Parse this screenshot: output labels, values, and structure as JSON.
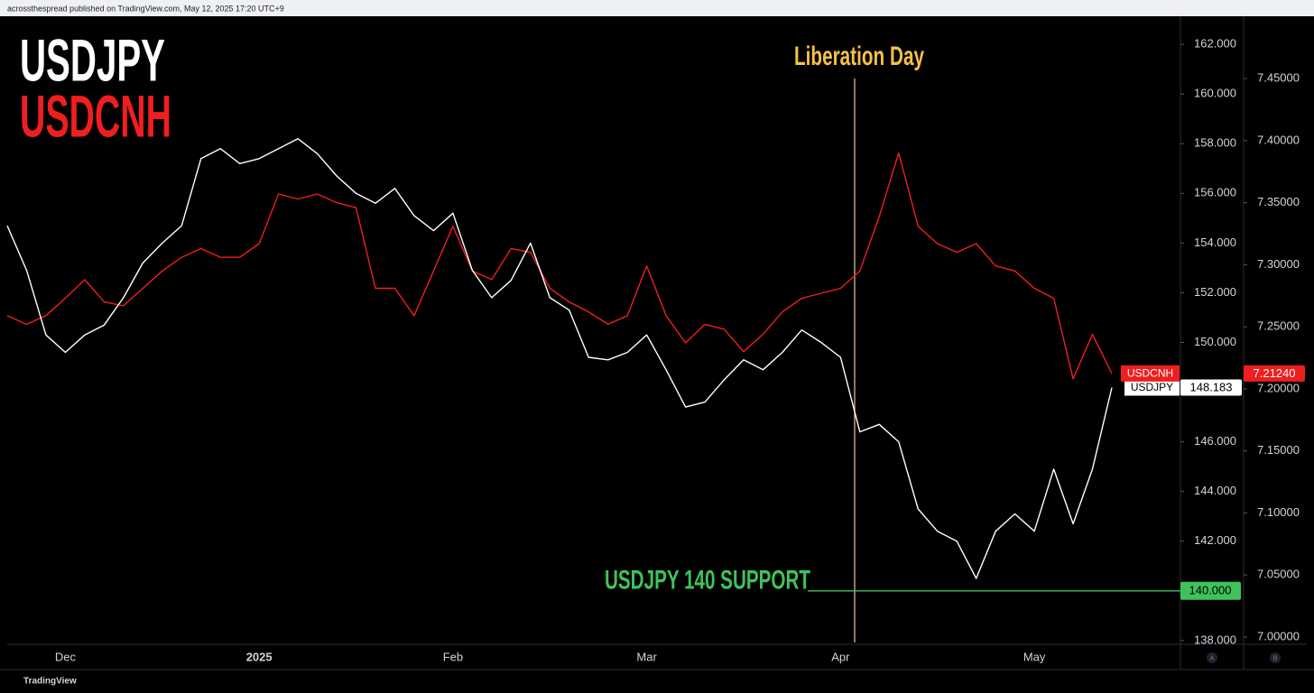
{
  "header": "acrossthespread published on TradingView.com, May 12, 2025 17:20 UTC+9",
  "footer": "TradingView",
  "chart_data": {
    "type": "line",
    "categories": [
      null,
      null,
      null,
      "Dec",
      null,
      null,
      null,
      null,
      null,
      null,
      null,
      null,
      null,
      "2025",
      null,
      null,
      null,
      null,
      null,
      null,
      null,
      null,
      null,
      "Feb",
      null,
      null,
      null,
      null,
      null,
      null,
      null,
      null,
      null,
      "Mar",
      null,
      null,
      null,
      null,
      null,
      null,
      null,
      null,
      null,
      "Apr",
      null,
      null,
      null,
      null,
      null,
      null,
      null,
      null,
      null,
      "May",
      null,
      null,
      null,
      null
    ],
    "series": [
      {
        "name": "USDJPY",
        "color": "#ffffff",
        "last_label": "148.183",
        "values": [
          154.7,
          152.9,
          150.3,
          149.6,
          150.3,
          150.7,
          151.8,
          153.2,
          154.0,
          154.7,
          157.4,
          157.8,
          157.2,
          157.4,
          157.8,
          158.2,
          157.6,
          156.7,
          156.0,
          155.6,
          156.2,
          155.1,
          154.5,
          155.2,
          152.9,
          151.8,
          152.5,
          154.0,
          151.8,
          151.3,
          149.4,
          149.3,
          149.6,
          150.3,
          148.9,
          147.4,
          147.6,
          148.5,
          149.3,
          148.9,
          149.6,
          150.5,
          150.0,
          149.4,
          146.4,
          146.7,
          146.0,
          143.3,
          142.4,
          142.0,
          140.5,
          142.4,
          143.1,
          142.4,
          144.9,
          142.7,
          144.9,
          148.183
        ]
      },
      {
        "name": "USDCNH",
        "color": "#f01e1e",
        "axis": "y2",
        "last_label": "7.21240",
        "values": [
          7.259,
          7.252,
          7.259,
          7.273,
          7.288,
          7.27,
          7.267,
          7.281,
          7.295,
          7.306,
          7.313,
          7.306,
          7.306,
          7.317,
          7.357,
          7.353,
          7.357,
          7.35,
          7.346,
          7.281,
          7.281,
          7.259,
          7.295,
          7.331,
          7.295,
          7.288,
          7.313,
          7.31,
          7.281,
          7.27,
          7.262,
          7.252,
          7.259,
          7.299,
          7.259,
          7.237,
          7.252,
          7.248,
          7.23,
          7.244,
          7.262,
          7.273,
          7.277,
          7.281,
          7.295,
          7.339,
          7.39,
          7.331,
          7.317,
          7.31,
          7.317,
          7.299,
          7.295,
          7.281,
          7.273,
          7.208,
          7.244,
          7.2124
        ]
      }
    ],
    "ylim": [
      137.85,
      163.13
    ],
    "yticks": [
      {
        "value": 138,
        "label": "138.000"
      },
      {
        "value": 140,
        "label": "140.000"
      },
      {
        "value": 142,
        "label": "142.000"
      },
      {
        "value": 144,
        "label": "144.000"
      },
      {
        "value": 146,
        "label": "146.000"
      },
      {
        "value": 148,
        "label": "148.000"
      },
      {
        "value": 150,
        "label": "150.000"
      },
      {
        "value": 152,
        "label": "152.000"
      },
      {
        "value": 154,
        "label": "154.000"
      },
      {
        "value": 156,
        "label": "156.000"
      },
      {
        "value": 158,
        "label": "158.000"
      },
      {
        "value": 160,
        "label": "160.000"
      },
      {
        "value": 162,
        "label": "162.000"
      }
    ],
    "y2lim": [
      6.9942,
      7.5002
    ],
    "y2ticks": [
      {
        "value": 7.0,
        "label": "7.00000"
      },
      {
        "value": 7.05,
        "label": "7.05000"
      },
      {
        "value": 7.1,
        "label": "7.10000"
      },
      {
        "value": 7.15,
        "label": "7.15000"
      },
      {
        "value": 7.2,
        "label": "7.20000"
      },
      {
        "value": 7.25,
        "label": "7.25000"
      },
      {
        "value": 7.3,
        "label": "7.30000"
      },
      {
        "value": 7.35,
        "label": "7.35000"
      },
      {
        "value": 7.4,
        "label": "7.40000"
      },
      {
        "value": 7.45,
        "label": "7.45000"
      }
    ],
    "annotation": {
      "text": "Liberation Day",
      "color": "#f5c04a"
    },
    "hline": {
      "label": "USDJPY 140 SUPPORT",
      "value": 140,
      "value_label": "140.000",
      "color": "#3fc25a"
    },
    "scale_buttons": [
      "A",
      "B"
    ],
    "grid": false
  }
}
